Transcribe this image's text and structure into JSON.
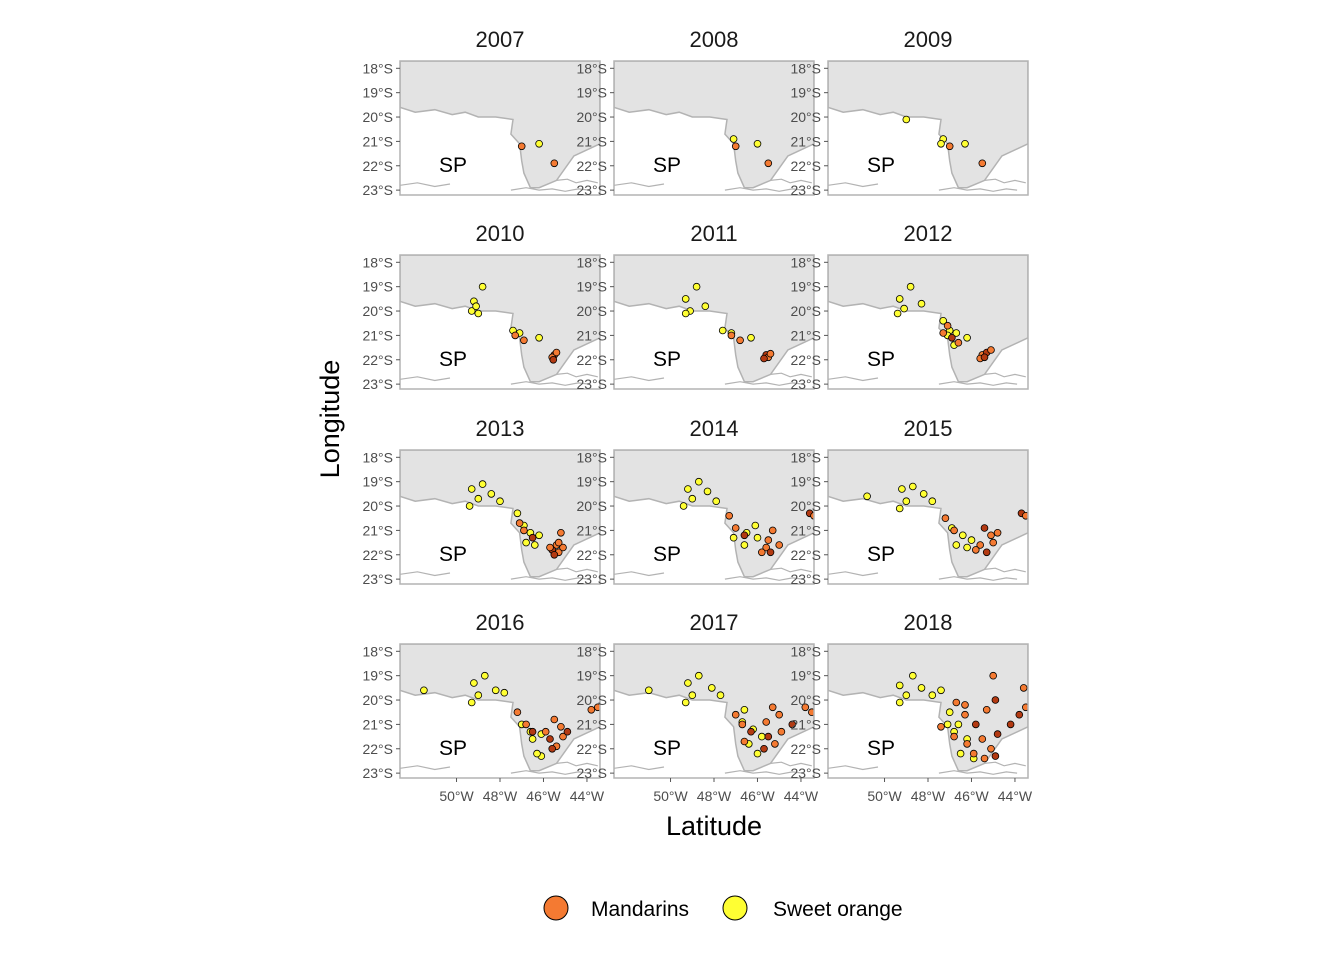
{
  "chart_data": {
    "type": "scatter",
    "facet_by": "year",
    "facet_layout": {
      "columns": 3,
      "rows": 4
    },
    "panels": [
      "2007",
      "2008",
      "2009",
      "2010",
      "2011",
      "2012",
      "2013",
      "2014",
      "2015",
      "2016",
      "2017",
      "2018"
    ],
    "region_label": "SP",
    "xlabel": "Latitude",
    "ylabel": "Longitude",
    "x_ticks": [
      {
        "value": -50,
        "label": "50°W"
      },
      {
        "value": -48,
        "label": "48°W"
      },
      {
        "value": -46,
        "label": "46°W"
      },
      {
        "value": -44,
        "label": "44°W"
      }
    ],
    "y_ticks": [
      {
        "value": -18,
        "label": "18°S"
      },
      {
        "value": -19,
        "label": "19°S"
      },
      {
        "value": -20,
        "label": "20°S"
      },
      {
        "value": -21,
        "label": "21°S"
      },
      {
        "value": -22,
        "label": "22°S"
      },
      {
        "value": -23,
        "label": "23°S"
      }
    ],
    "xlim": [
      -52.6,
      -43.4
    ],
    "ylim": [
      -23.2,
      -17.7
    ],
    "grid": false,
    "legend_position": "bottom",
    "map_colors": {
      "land": "#e3e3e3",
      "border": "#b3b3b3",
      "panel_border": "#b3b3b3"
    },
    "series": [
      {
        "name": "Mandarins",
        "color": "#f47a32",
        "dark_color": "#b33a12"
      },
      {
        "name": "Sweet orange",
        "color": "#ffff33"
      }
    ],
    "points": {
      "2007": {
        "Mandarins": [
          [
            -47.0,
            -21.2
          ],
          [
            -45.5,
            -21.9
          ]
        ],
        "Sweet orange": [
          [
            -46.2,
            -21.1
          ]
        ]
      },
      "2008": {
        "Mandarins": [
          [
            -47.0,
            -21.2
          ],
          [
            -45.5,
            -21.9
          ]
        ],
        "Sweet orange": [
          [
            -47.1,
            -20.9
          ],
          [
            -46.0,
            -21.1
          ]
        ]
      },
      "2009": {
        "Mandarins": [
          [
            -47.0,
            -21.2
          ],
          [
            -45.5,
            -21.9
          ]
        ],
        "Sweet orange": [
          [
            -49.0,
            -20.1
          ],
          [
            -47.3,
            -20.9
          ],
          [
            -47.4,
            -21.1
          ],
          [
            -46.3,
            -21.1
          ]
        ]
      },
      "2010": {
        "Mandarins": [
          [
            -47.3,
            -21.0
          ],
          [
            -46.9,
            -21.2
          ],
          [
            -45.5,
            -21.8
          ],
          [
            -45.6,
            -21.9
          ],
          [
            -45.4,
            -21.7
          ],
          [
            -45.55,
            -22.0
          ]
        ],
        "Sweet orange": [
          [
            -49.2,
            -19.6
          ],
          [
            -48.8,
            -19.0
          ],
          [
            -49.3,
            -20.0
          ],
          [
            -49.0,
            -20.1
          ],
          [
            -49.1,
            -19.8
          ],
          [
            -47.4,
            -20.8
          ],
          [
            -47.1,
            -20.9
          ],
          [
            -46.2,
            -21.1
          ]
        ]
      },
      "2011": {
        "Mandarins": [
          [
            -47.2,
            -21.0
          ],
          [
            -46.8,
            -21.2
          ],
          [
            -45.6,
            -21.8
          ],
          [
            -45.5,
            -21.9
          ],
          [
            -45.4,
            -21.75
          ],
          [
            -45.7,
            -21.95
          ]
        ],
        "Sweet orange": [
          [
            -49.3,
            -19.5
          ],
          [
            -48.8,
            -19.0
          ],
          [
            -48.4,
            -19.8
          ],
          [
            -49.1,
            -20.0
          ],
          [
            -49.3,
            -20.1
          ],
          [
            -47.6,
            -20.8
          ],
          [
            -47.2,
            -20.9
          ],
          [
            -46.3,
            -21.1
          ]
        ]
      },
      "2012": {
        "Mandarins": [
          [
            -47.1,
            -20.6
          ],
          [
            -47.3,
            -20.9
          ],
          [
            -46.9,
            -21.1
          ],
          [
            -46.6,
            -21.3
          ],
          [
            -45.5,
            -21.8
          ],
          [
            -45.3,
            -21.7
          ],
          [
            -45.6,
            -21.95
          ],
          [
            -45.1,
            -21.6
          ],
          [
            -45.4,
            -21.9
          ]
        ],
        "Sweet orange": [
          [
            -48.8,
            -19.0
          ],
          [
            -49.3,
            -19.5
          ],
          [
            -49.1,
            -19.9
          ],
          [
            -49.4,
            -20.1
          ],
          [
            -48.3,
            -19.7
          ],
          [
            -47.3,
            -20.4
          ],
          [
            -47.0,
            -20.8
          ],
          [
            -46.7,
            -20.9
          ],
          [
            -46.2,
            -21.1
          ],
          [
            -46.8,
            -21.4
          ],
          [
            -47.1,
            -21.0
          ]
        ]
      },
      "2013": {
        "Mandarins": [
          [
            -47.1,
            -20.7
          ],
          [
            -46.9,
            -21.0
          ],
          [
            -46.5,
            -21.3
          ],
          [
            -45.4,
            -21.6
          ],
          [
            -45.2,
            -21.1
          ],
          [
            -45.6,
            -21.8
          ],
          [
            -45.3,
            -21.9
          ],
          [
            -45.1,
            -21.7
          ],
          [
            -45.5,
            -22.0
          ],
          [
            -45.7,
            -21.7
          ],
          [
            -45.3,
            -21.5
          ]
        ],
        "Sweet orange": [
          [
            -49.3,
            -19.3
          ],
          [
            -48.8,
            -19.1
          ],
          [
            -49.0,
            -19.7
          ],
          [
            -49.4,
            -20.0
          ],
          [
            -48.4,
            -19.5
          ],
          [
            -48.0,
            -19.8
          ],
          [
            -47.2,
            -20.3
          ],
          [
            -46.9,
            -20.8
          ],
          [
            -46.6,
            -21.1
          ],
          [
            -46.2,
            -21.2
          ],
          [
            -46.4,
            -21.6
          ],
          [
            -46.8,
            -21.5
          ]
        ]
      },
      "2014": {
        "Mandarins": [
          [
            -47.3,
            -20.4
          ],
          [
            -47.0,
            -20.9
          ],
          [
            -46.6,
            -21.2
          ],
          [
            -45.3,
            -21.0
          ],
          [
            -45.6,
            -21.7
          ],
          [
            -45.4,
            -21.9
          ],
          [
            -45.0,
            -21.6
          ],
          [
            -45.8,
            -21.9
          ],
          [
            -43.6,
            -20.3
          ],
          [
            -43.4,
            -20.4
          ],
          [
            -45.5,
            -21.4
          ]
        ],
        "Sweet orange": [
          [
            -49.2,
            -19.3
          ],
          [
            -48.7,
            -19.0
          ],
          [
            -49.0,
            -19.7
          ],
          [
            -49.4,
            -20.0
          ],
          [
            -48.3,
            -19.4
          ],
          [
            -47.9,
            -19.8
          ],
          [
            -46.1,
            -20.8
          ],
          [
            -46.5,
            -21.1
          ],
          [
            -46.0,
            -21.3
          ],
          [
            -46.6,
            -21.6
          ],
          [
            -47.1,
            -21.3
          ]
        ]
      },
      "2015": {
        "Mandarins": [
          [
            -47.2,
            -20.5
          ],
          [
            -46.8,
            -21.0
          ],
          [
            -45.4,
            -20.9
          ],
          [
            -45.1,
            -21.2
          ],
          [
            -45.6,
            -21.6
          ],
          [
            -45.3,
            -21.9
          ],
          [
            -45.8,
            -21.8
          ],
          [
            -45.0,
            -21.5
          ],
          [
            -43.7,
            -20.3
          ],
          [
            -43.5,
            -20.4
          ],
          [
            -44.8,
            -21.1
          ]
        ],
        "Sweet orange": [
          [
            -50.8,
            -19.6
          ],
          [
            -49.2,
            -19.3
          ],
          [
            -48.7,
            -19.2
          ],
          [
            -49.0,
            -19.8
          ],
          [
            -49.3,
            -20.1
          ],
          [
            -48.2,
            -19.5
          ],
          [
            -47.8,
            -19.8
          ],
          [
            -46.9,
            -20.9
          ],
          [
            -46.4,
            -21.2
          ],
          [
            -46.0,
            -21.4
          ],
          [
            -46.7,
            -21.6
          ],
          [
            -46.2,
            -21.7
          ]
        ]
      },
      "2016": {
        "Mandarins": [
          [
            -47.2,
            -20.5
          ],
          [
            -46.8,
            -21.0
          ],
          [
            -46.5,
            -21.3
          ],
          [
            -45.5,
            -20.8
          ],
          [
            -45.2,
            -21.1
          ],
          [
            -45.7,
            -21.6
          ],
          [
            -45.4,
            -21.9
          ],
          [
            -45.1,
            -21.5
          ],
          [
            -45.6,
            -22.0
          ],
          [
            -43.8,
            -20.4
          ],
          [
            -43.5,
            -20.3
          ],
          [
            -44.9,
            -21.3
          ],
          [
            -45.9,
            -21.3
          ]
        ],
        "Sweet orange": [
          [
            -51.5,
            -19.6
          ],
          [
            -49.2,
            -19.3
          ],
          [
            -48.7,
            -19.0
          ],
          [
            -49.0,
            -19.8
          ],
          [
            -49.3,
            -20.1
          ],
          [
            -48.2,
            -19.6
          ],
          [
            -47.8,
            -19.7
          ],
          [
            -47.0,
            -21.0
          ],
          [
            -46.6,
            -21.3
          ],
          [
            -46.1,
            -21.4
          ],
          [
            -46.5,
            -21.6
          ],
          [
            -46.1,
            -22.3
          ],
          [
            -46.3,
            -22.2
          ]
        ]
      },
      "2017": {
        "Mandarins": [
          [
            -47.0,
            -20.6
          ],
          [
            -46.7,
            -21.0
          ],
          [
            -46.3,
            -21.3
          ],
          [
            -45.6,
            -20.9
          ],
          [
            -45.0,
            -20.6
          ],
          [
            -45.5,
            -21.5
          ],
          [
            -45.2,
            -21.8
          ],
          [
            -44.9,
            -21.3
          ],
          [
            -45.7,
            -22.0
          ],
          [
            -43.8,
            -20.3
          ],
          [
            -43.5,
            -20.5
          ],
          [
            -44.4,
            -21.0
          ],
          [
            -45.3,
            -20.3
          ],
          [
            -46.6,
            -21.7
          ]
        ],
        "Sweet orange": [
          [
            -51.0,
            -19.6
          ],
          [
            -49.2,
            -19.3
          ],
          [
            -48.7,
            -19.0
          ],
          [
            -49.0,
            -19.8
          ],
          [
            -49.3,
            -20.1
          ],
          [
            -48.1,
            -19.5
          ],
          [
            -47.7,
            -19.8
          ],
          [
            -46.7,
            -20.9
          ],
          [
            -46.2,
            -21.2
          ],
          [
            -45.8,
            -21.5
          ],
          [
            -46.4,
            -21.8
          ],
          [
            -46.0,
            -22.2
          ],
          [
            -46.6,
            -20.4
          ]
        ]
      },
      "2018": {
        "Mandarins": [
          [
            -46.7,
            -20.1
          ],
          [
            -46.3,
            -20.6
          ],
          [
            -45.8,
            -21.0
          ],
          [
            -45.3,
            -20.4
          ],
          [
            -45.0,
            -19.0
          ],
          [
            -44.9,
            -20.0
          ],
          [
            -45.5,
            -21.6
          ],
          [
            -45.1,
            -22.0
          ],
          [
            -44.8,
            -21.4
          ],
          [
            -45.9,
            -22.2
          ],
          [
            -46.2,
            -21.8
          ],
          [
            -44.2,
            -21.0
          ],
          [
            -43.6,
            -19.5
          ],
          [
            -43.5,
            -20.3
          ],
          [
            -43.8,
            -20.6
          ],
          [
            -46.8,
            -21.5
          ],
          [
            -45.4,
            -22.4
          ],
          [
            -44.9,
            -22.3
          ],
          [
            -46.3,
            -20.2
          ],
          [
            -47.4,
            -21.1
          ]
        ],
        "Sweet orange": [
          [
            -49.3,
            -19.4
          ],
          [
            -48.7,
            -19.0
          ],
          [
            -49.0,
            -19.8
          ],
          [
            -49.3,
            -20.1
          ],
          [
            -48.3,
            -19.5
          ],
          [
            -47.8,
            -19.8
          ],
          [
            -47.4,
            -19.6
          ],
          [
            -47.0,
            -20.5
          ],
          [
            -46.6,
            -21.0
          ],
          [
            -46.8,
            -21.3
          ],
          [
            -46.2,
            -21.6
          ],
          [
            -46.5,
            -22.2
          ],
          [
            -45.9,
            -22.4
          ],
          [
            -47.1,
            -21.0
          ]
        ]
      }
    }
  }
}
